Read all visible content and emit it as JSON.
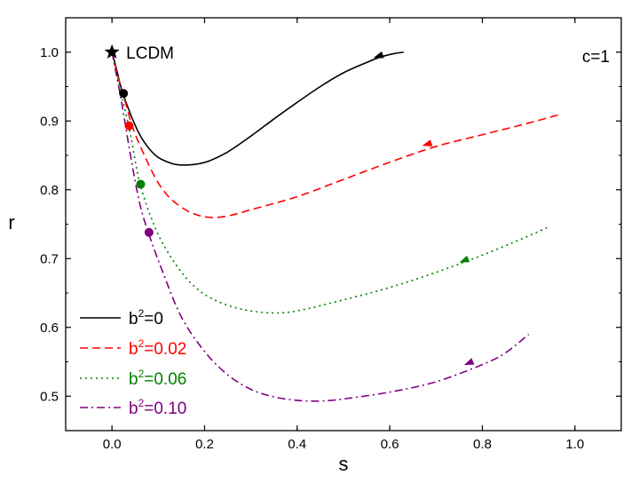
{
  "chart_data": {
    "type": "line",
    "title": "",
    "xlabel": "s",
    "ylabel": "r",
    "xlim": [
      -0.1,
      1.1
    ],
    "ylim": [
      0.45,
      1.05
    ],
    "grid": false,
    "x_ticks": [
      0.0,
      0.2,
      0.4,
      0.6,
      0.8,
      1.0
    ],
    "x_tick_labels": [
      "0.0",
      "0.2",
      "0.4",
      "0.6",
      "0.8",
      "1.0"
    ],
    "y_ticks": [
      0.5,
      0.6,
      0.7,
      0.8,
      0.9,
      1.0
    ],
    "y_tick_labels": [
      "0.5",
      "0.6",
      "0.7",
      "0.8",
      "0.9",
      "1.0"
    ],
    "legend_position": "bottom-left",
    "annotations": {
      "fixed_point_label": "LCDM",
      "fixed_point": {
        "s": 0.0,
        "r": 1.0
      },
      "corner_label": "c=1"
    },
    "series": [
      {
        "name": "b²=0",
        "legend_base": "b",
        "legend_sup": "2",
        "legend_rest": "=0",
        "color": "#000000",
        "dash": "solid",
        "points": [
          [
            0.0,
            1.0
          ],
          [
            0.01,
            0.975
          ],
          [
            0.02,
            0.948
          ],
          [
            0.04,
            0.91
          ],
          [
            0.06,
            0.88
          ],
          [
            0.08,
            0.86
          ],
          [
            0.1,
            0.847
          ],
          [
            0.13,
            0.838
          ],
          [
            0.15,
            0.836
          ],
          [
            0.18,
            0.837
          ],
          [
            0.21,
            0.842
          ],
          [
            0.25,
            0.855
          ],
          [
            0.3,
            0.878
          ],
          [
            0.35,
            0.903
          ],
          [
            0.4,
            0.927
          ],
          [
            0.45,
            0.95
          ],
          [
            0.5,
            0.97
          ],
          [
            0.55,
            0.985
          ],
          [
            0.58,
            0.993
          ],
          [
            0.61,
            0.998
          ],
          [
            0.63,
            1.0
          ]
        ],
        "marker": {
          "s": 0.025,
          "r": 0.94
        },
        "arrow": {
          "s": 0.575,
          "r": 0.994
        }
      },
      {
        "name": "b²=0.02",
        "legend_base": "b",
        "legend_sup": "2",
        "legend_rest": "=0.02",
        "color": "#ff0000",
        "dash": "dashed",
        "points": [
          [
            0.0,
            1.0
          ],
          [
            0.015,
            0.96
          ],
          [
            0.03,
            0.925
          ],
          [
            0.045,
            0.89
          ],
          [
            0.07,
            0.85
          ],
          [
            0.1,
            0.81
          ],
          [
            0.13,
            0.785
          ],
          [
            0.17,
            0.767
          ],
          [
            0.21,
            0.76
          ],
          [
            0.25,
            0.762
          ],
          [
            0.3,
            0.771
          ],
          [
            0.4,
            0.79
          ],
          [
            0.5,
            0.815
          ],
          [
            0.6,
            0.84
          ],
          [
            0.7,
            0.863
          ],
          [
            0.8,
            0.88
          ],
          [
            0.9,
            0.897
          ],
          [
            0.97,
            0.91
          ]
        ],
        "marker": {
          "s": 0.037,
          "r": 0.893
        },
        "arrow": {
          "s": 0.68,
          "r": 0.866
        }
      },
      {
        "name": "b²=0.06",
        "legend_base": "b",
        "legend_sup": "2",
        "legend_rest": "=0.06",
        "color": "#008000",
        "dash": "dotted",
        "points": [
          [
            0.0,
            1.0
          ],
          [
            0.02,
            0.94
          ],
          [
            0.04,
            0.88
          ],
          [
            0.06,
            0.81
          ],
          [
            0.09,
            0.75
          ],
          [
            0.12,
            0.71
          ],
          [
            0.16,
            0.672
          ],
          [
            0.2,
            0.648
          ],
          [
            0.25,
            0.632
          ],
          [
            0.3,
            0.624
          ],
          [
            0.35,
            0.621
          ],
          [
            0.4,
            0.624
          ],
          [
            0.5,
            0.64
          ],
          [
            0.6,
            0.658
          ],
          [
            0.7,
            0.68
          ],
          [
            0.8,
            0.705
          ],
          [
            0.9,
            0.733
          ],
          [
            0.94,
            0.745
          ]
        ],
        "marker": {
          "s": 0.062,
          "r": 0.808
        },
        "arrow": {
          "s": 0.76,
          "r": 0.697
        }
      },
      {
        "name": "b²=0.10",
        "legend_base": "b",
        "legend_sup": "2",
        "legend_rest": "=0.10",
        "color": "#800080",
        "dash": "dashdot",
        "points": [
          [
            0.0,
            1.0
          ],
          [
            0.02,
            0.93
          ],
          [
            0.04,
            0.85
          ],
          [
            0.06,
            0.78
          ],
          [
            0.08,
            0.735
          ],
          [
            0.11,
            0.68
          ],
          [
            0.15,
            0.615
          ],
          [
            0.2,
            0.565
          ],
          [
            0.25,
            0.531
          ],
          [
            0.3,
            0.51
          ],
          [
            0.35,
            0.499
          ],
          [
            0.4,
            0.494
          ],
          [
            0.45,
            0.493
          ],
          [
            0.5,
            0.496
          ],
          [
            0.6,
            0.506
          ],
          [
            0.7,
            0.521
          ],
          [
            0.8,
            0.546
          ],
          [
            0.85,
            0.563
          ],
          [
            0.9,
            0.59
          ]
        ],
        "marker": {
          "s": 0.08,
          "r": 0.738
        },
        "arrow": {
          "s": 0.77,
          "r": 0.548
        }
      }
    ]
  }
}
